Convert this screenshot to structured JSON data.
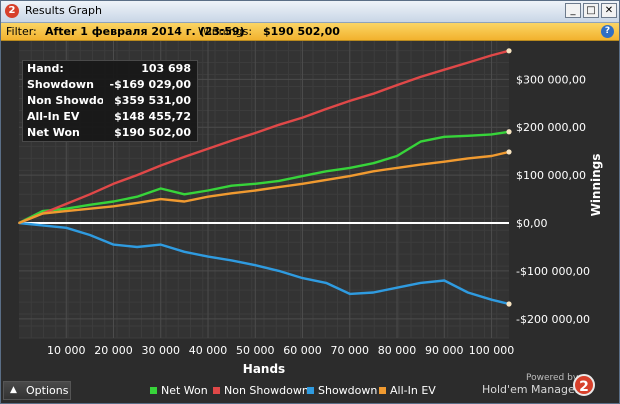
{
  "window": {
    "app_icon": "2",
    "title": "Results Graph",
    "minimize_label": "_",
    "maximize_label": "□",
    "close_label": "✕"
  },
  "filter": {
    "label": "Filter:",
    "value": "After 1 февраля 2014 г. (23:59)",
    "winnings_label": "Winnings:",
    "winnings_value": "$190 502,00",
    "help_icon": "?"
  },
  "stats": [
    {
      "label": "Hand:",
      "value": "103 698"
    },
    {
      "label": "Showdown",
      "value": "-$169 029,00"
    },
    {
      "label": "Non Showdown",
      "value": "$359 531,00"
    },
    {
      "label": "All-In EV",
      "value": "$148 455,72"
    },
    {
      "label": "Net Won",
      "value": "$190 502,00"
    }
  ],
  "chart_data": {
    "type": "line",
    "xlabel": "Hands",
    "ylabel": "Winnings",
    "xlim": [
      0,
      103698
    ],
    "ylim": [
      -240000,
      380000
    ],
    "x_ticks": [
      10000,
      20000,
      30000,
      40000,
      50000,
      60000,
      70000,
      80000,
      90000,
      100000
    ],
    "x_tick_labels": [
      "10 000",
      "20 000",
      "30 000",
      "40 000",
      "50 000",
      "60 000",
      "70 000",
      "80 000",
      "90 000",
      "100 000"
    ],
    "y_ticks": [
      300000,
      200000,
      100000,
      0,
      -100000,
      -200000
    ],
    "y_tick_labels": [
      "$300 000,00",
      "$200 000,00",
      "$100 000,00",
      "$0,00",
      "-$100 000,00",
      "-$200 000,00"
    ],
    "grid": true,
    "legend_position": "bottom",
    "x": [
      0,
      5000,
      10000,
      15000,
      20000,
      25000,
      30000,
      35000,
      40000,
      45000,
      50000,
      55000,
      60000,
      65000,
      70000,
      75000,
      80000,
      85000,
      90000,
      95000,
      100000,
      103698
    ],
    "series": [
      {
        "name": "Net Won",
        "color": "#37d43a",
        "values": [
          0,
          25000,
          30000,
          38000,
          45000,
          55000,
          72000,
          60000,
          68000,
          78000,
          82000,
          88000,
          98000,
          108000,
          115000,
          125000,
          140000,
          170000,
          180000,
          182000,
          185000,
          190502
        ]
      },
      {
        "name": "Non Showdown",
        "color": "#e04848",
        "values": [
          0,
          20000,
          40000,
          60000,
          82000,
          100000,
          120000,
          138000,
          155000,
          172000,
          188000,
          205000,
          220000,
          238000,
          255000,
          270000,
          288000,
          305000,
          320000,
          335000,
          350000,
          359531
        ]
      },
      {
        "name": "Showdown",
        "color": "#2f9be0",
        "values": [
          0,
          -5000,
          -10000,
          -25000,
          -45000,
          -50000,
          -45000,
          -60000,
          -70000,
          -78000,
          -88000,
          -100000,
          -115000,
          -125000,
          -148000,
          -145000,
          -135000,
          -125000,
          -120000,
          -145000,
          -160000,
          -169029
        ]
      },
      {
        "name": "All-In EV",
        "color": "#f09a30",
        "values": [
          0,
          20000,
          25000,
          30000,
          35000,
          42000,
          50000,
          45000,
          55000,
          62000,
          68000,
          75000,
          82000,
          90000,
          98000,
          108000,
          115000,
          122000,
          128000,
          135000,
          140000,
          148456
        ]
      }
    ]
  },
  "bottom": {
    "options_label": "Options",
    "powered_by": "Powered by",
    "brand": "Hold'em Manager",
    "brand_logo": "2"
  }
}
